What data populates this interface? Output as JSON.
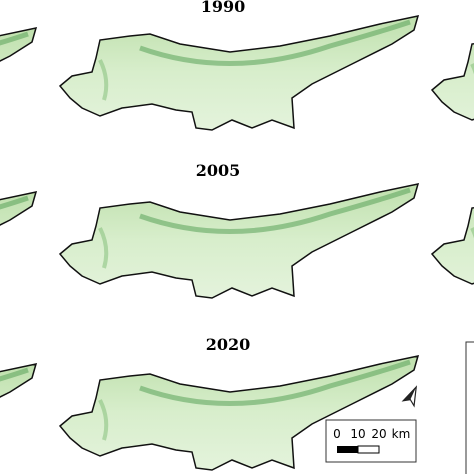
{
  "panels": [
    {
      "year": "1990"
    },
    {
      "year": "2005"
    },
    {
      "year": "2020"
    }
  ],
  "scale_bar": {
    "labels": [
      "0",
      "10",
      "20",
      "km"
    ]
  }
}
